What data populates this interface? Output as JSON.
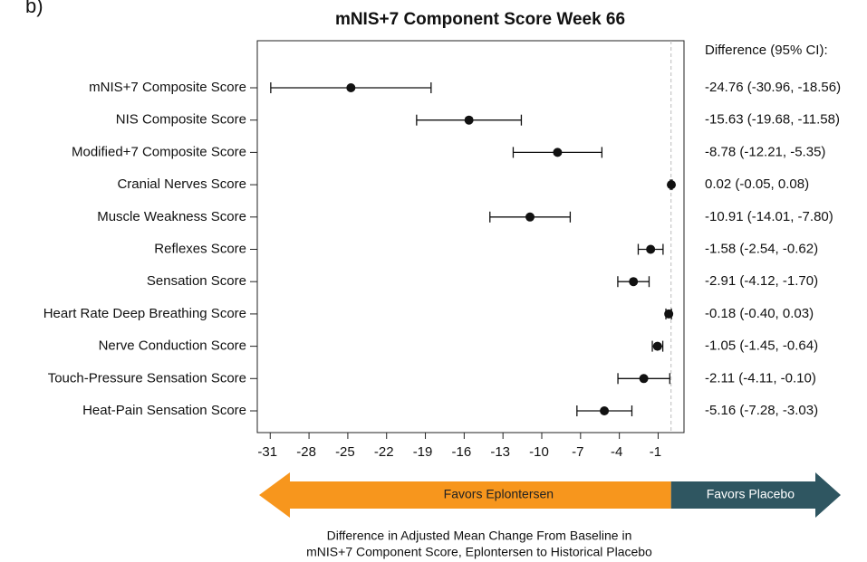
{
  "panel_label": "b)",
  "chart_data": {
    "type": "forest",
    "title": "mNIS+7 Component Score Week 66",
    "value_header": "Difference (95% CI):",
    "categories": [
      "mNIS+7 Composite Score",
      "NIS Composite Score",
      "Modified+7 Composite Score",
      "Cranial Nerves Score",
      "Muscle Weakness Score",
      "Reflexes Score",
      "Sensation Score",
      "Heart Rate Deep Breathing Score",
      "Nerve Conduction Score",
      "Touch-Pressure Sensation Score",
      "Heat-Pain Sensation Score"
    ],
    "values": [
      -24.76,
      -15.63,
      -8.78,
      0.02,
      -10.91,
      -1.58,
      -2.91,
      -0.18,
      -1.05,
      -2.11,
      -5.16
    ],
    "lower": [
      -30.96,
      -19.68,
      -12.21,
      -0.05,
      -14.01,
      -2.54,
      -4.12,
      -0.4,
      -1.45,
      -4.11,
      -7.28
    ],
    "upper": [
      -18.56,
      -11.58,
      -5.35,
      0.08,
      -7.8,
      -0.62,
      -1.7,
      0.03,
      -0.64,
      -0.1,
      -3.03
    ],
    "value_labels": [
      "-24.76 (-30.96, -18.56)",
      "-15.63 (-19.68, -11.58)",
      "-8.78 (-12.21, -5.35)",
      "0.02 (-0.05, 0.08)",
      "-10.91 (-14.01, -7.80)",
      "-1.58 (-2.54, -0.62)",
      "-2.91 (-4.12, -1.70)",
      "-0.18 (-0.40, 0.03)",
      "-1.05 (-1.45, -0.64)",
      "-2.11 (-4.11, -0.10)",
      "-5.16 (-7.28, -3.03)"
    ],
    "xlim": [
      -32,
      1
    ],
    "xticks": [
      -31,
      -28,
      -25,
      -22,
      -19,
      -16,
      -13,
      -10,
      -7,
      -4,
      -1
    ],
    "reference_line": 0,
    "color": "#111111",
    "xlabel_lines": [
      "Difference in Adjusted Mean Change From Baseline in",
      "mNIS+7 Component Score, Eplontersen to Historical Placebo"
    ],
    "arrows": [
      {
        "label": "Favors Eplontersen",
        "color": "#f7961d",
        "text_color": "#222222"
      },
      {
        "label": "Favors Placebo",
        "color": "#2f5661",
        "text_color": "#ffffff"
      }
    ]
  }
}
